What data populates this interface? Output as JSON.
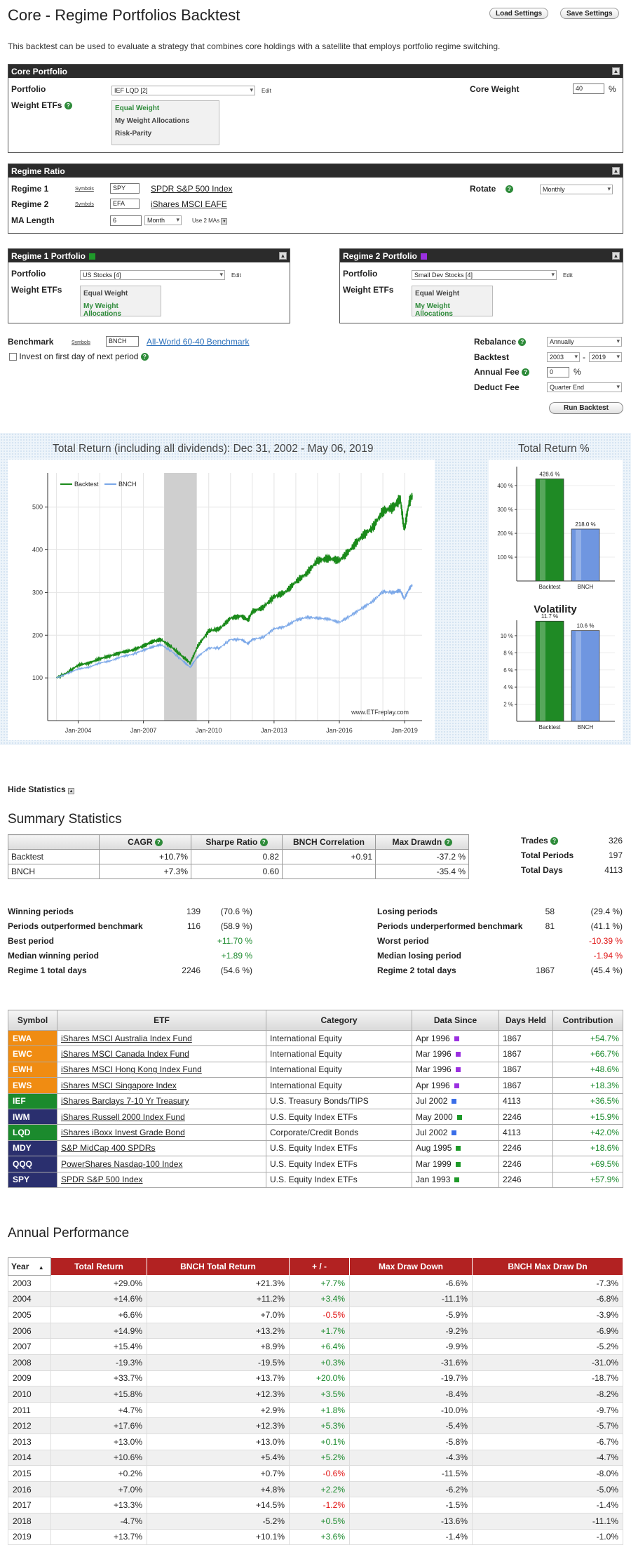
{
  "page": {
    "title": "Core - Regime Portfolios Backtest",
    "load_settings": "Load Settings",
    "save_settings": "Save Settings",
    "intro": "This backtest can be used to evaluate a strategy that combines core holdings with a satellite that employs portfolio regime switching."
  },
  "core": {
    "header": "Core Portfolio",
    "portfolio_label": "Portfolio",
    "portfolio_value": "IEF LQD [2]",
    "edit": "Edit",
    "weight_label": "Weight ETFs",
    "weight_options": [
      "Equal Weight",
      "My Weight Allocations",
      "Risk-Parity"
    ],
    "core_weight_label": "Core Weight",
    "core_weight_value": "40",
    "core_weight_unit": "%"
  },
  "regime": {
    "header": "Regime Ratio",
    "r1_label": "Regime 1",
    "r2_label": "Regime 2",
    "symbols_label": "Symbols",
    "r1_symbol": "SPY",
    "r1_name": "SPDR S&P 500 Index",
    "r2_symbol": "EFA",
    "r2_name": "iShares MSCI EAFE",
    "ma_label": "MA Length",
    "ma_value": "6",
    "ma_unit": "Month",
    "use2": "Use 2 MAs",
    "rotate_label": "Rotate",
    "rotate_value": "Monthly"
  },
  "r1p": {
    "header": "Regime 1 Portfolio",
    "color": "#1f9a2a",
    "portfolio_label": "Portfolio",
    "portfolio_value": "US Stocks [4]",
    "edit": "Edit",
    "weight_label": "Weight ETFs",
    "weight_options": [
      "Equal Weight",
      "My Weight Allocations"
    ]
  },
  "r2p": {
    "header": "Regime 2 Portfolio",
    "color": "#9b30e0",
    "portfolio_label": "Portfolio",
    "portfolio_value": "Small Dev Stocks [4]",
    "edit": "Edit",
    "weight_label": "Weight ETFs",
    "weight_options": [
      "Equal Weight",
      "My Weight Allocations"
    ]
  },
  "bench": {
    "label": "Benchmark",
    "symbols_label": "Symbols",
    "symbol": "BNCH",
    "name": "All-World 60-40 Benchmark",
    "invest_first": "Invest on first day of next period"
  },
  "settings": {
    "rebalance_label": "Rebalance",
    "rebalance_value": "Annually",
    "backtest_label": "Backtest",
    "from_year": "2003",
    "dash": "-",
    "to_year": "2019",
    "fee_label": "Annual Fee",
    "fee_value": "0",
    "fee_unit": "%",
    "deduct_label": "Deduct Fee",
    "deduct_value": "Quarter End",
    "run": "Run Backtest"
  },
  "main_chart": {
    "title": "Total Return (including all dividends): Dec 31, 2002 - May 06, 2019",
    "watermark": "www.ETFreplay.com",
    "legend": [
      "Backtest",
      "BNCH"
    ],
    "colors": {
      "backtest": "#1a8a1a",
      "bnch": "#7aa7e8",
      "shade": "#cfcfcf"
    }
  },
  "chart_data": [
    {
      "type": "line",
      "title": "Total Return (including all dividends): Dec 31, 2002 - May 06, 2019",
      "ylim": [
        0,
        580
      ],
      "xlim": [
        2002.6,
        2019.8
      ],
      "yticks": [
        100,
        200,
        300,
        400,
        500
      ],
      "xticks": [
        "Jan-2004",
        "Jan-2007",
        "Jan-2010",
        "Jan-2013",
        "Jan-2016",
        "Jan-2019"
      ],
      "shaded_region": [
        2007.95,
        2009.45
      ],
      "grid": true,
      "legend": "top-left",
      "series": [
        {
          "name": "Backtest",
          "x": [
            2003.0,
            2003.5,
            2004.0,
            2004.5,
            2005.0,
            2005.5,
            2006.0,
            2006.5,
            2007.0,
            2007.4,
            2007.8,
            2008.3,
            2008.8,
            2009.15,
            2009.5,
            2010.0,
            2010.5,
            2011.0,
            2011.5,
            2011.8,
            2012.0,
            2012.5,
            2013.0,
            2013.5,
            2014.0,
            2014.5,
            2015.0,
            2015.5,
            2016.0,
            2016.5,
            2017.0,
            2017.5,
            2018.0,
            2018.5,
            2018.8,
            2018.98,
            2019.2,
            2019.35
          ],
          "values": [
            100,
            112,
            130,
            135,
            145,
            152,
            160,
            165,
            175,
            185,
            190,
            172,
            150,
            135,
            175,
            210,
            215,
            240,
            245,
            235,
            255,
            265,
            290,
            300,
            325,
            345,
            375,
            380,
            375,
            400,
            430,
            450,
            490,
            500,
            520,
            445,
            510,
            528
          ]
        },
        {
          "name": "BNCH",
          "x": [
            2003.0,
            2003.5,
            2004.0,
            2004.5,
            2005.0,
            2005.5,
            2006.0,
            2006.5,
            2007.0,
            2007.4,
            2007.8,
            2008.3,
            2008.8,
            2009.15,
            2009.5,
            2010.0,
            2010.5,
            2011.0,
            2011.5,
            2011.8,
            2012.0,
            2012.5,
            2013.0,
            2013.5,
            2014.0,
            2014.5,
            2015.0,
            2015.5,
            2016.0,
            2016.5,
            2017.0,
            2017.5,
            2018.0,
            2018.5,
            2018.8,
            2018.98,
            2019.2,
            2019.35
          ],
          "values": [
            100,
            110,
            121,
            125,
            135,
            140,
            150,
            155,
            165,
            172,
            178,
            162,
            140,
            125,
            150,
            170,
            170,
            190,
            190,
            180,
            190,
            195,
            215,
            220,
            235,
            242,
            240,
            238,
            230,
            245,
            262,
            278,
            302,
            300,
            305,
            285,
            308,
            318
          ]
        }
      ]
    },
    {
      "type": "bar",
      "title": "Total Return %",
      "categories": [
        "Backtest",
        "BNCH"
      ],
      "values": [
        428.6,
        218.0
      ],
      "data_labels": [
        "428.6 %",
        "218.0 %"
      ],
      "ylim": [
        0,
        480
      ],
      "yticks": [
        "100 %",
        "200 %",
        "300 %",
        "400 %"
      ]
    },
    {
      "type": "bar",
      "title": "Volatility",
      "categories": [
        "Backtest",
        "BNCH"
      ],
      "values": [
        11.7,
        10.6
      ],
      "data_labels": [
        "11.7 %",
        "10.6 %"
      ],
      "ylim": [
        0,
        11.8
      ],
      "yticks": [
        "2 %",
        "4 %",
        "6 %",
        "8 %",
        "10 %"
      ]
    }
  ],
  "bars": {
    "colors": {
      "backtest": "#1f8a25",
      "bnch": "#6f96e0"
    }
  },
  "stats": {
    "hide": "Hide Statistics",
    "summary_title": "Summary Statistics",
    "columns": [
      "",
      "CAGR",
      "Sharpe Ratio",
      "BNCH Correlation",
      "Max Drawdn"
    ],
    "rows": [
      [
        "Backtest",
        "+10.7%",
        "0.82",
        "+0.91",
        "-37.2 %"
      ],
      [
        "BNCH",
        "+7.3%",
        "0.60",
        "",
        "-35.4 %"
      ]
    ],
    "trades_label": "Trades",
    "trades_value": "326",
    "periods_label": "Total Periods",
    "periods_value": "197",
    "days_label": "Total Days",
    "days_value": "4113",
    "left": [
      {
        "label": "Winning periods",
        "v1": "139",
        "v2": "(70.6 %)"
      },
      {
        "label": "Periods outperformed benchmark",
        "v1": "116",
        "v2": "(58.9 %)"
      },
      {
        "label": "Best period",
        "v1": "",
        "v2": "+11.70 %"
      },
      {
        "label": "Median winning period",
        "v1": "",
        "v2": "+1.89 %"
      },
      {
        "label": "Regime 1 total days",
        "v1": "2246",
        "v2": "(54.6 %)"
      }
    ],
    "right": [
      {
        "label": "Losing periods",
        "v1": "58",
        "v2": "(29.4 %)"
      },
      {
        "label": "Periods underperformed benchmark",
        "v1": "81",
        "v2": "(41.1 %)"
      },
      {
        "label": "Worst period",
        "v1": "",
        "v2": "-10.39 %"
      },
      {
        "label": "Median losing period",
        "v1": "",
        "v2": "-1.94 %"
      },
      {
        "label": "Regime 2 total days",
        "v1": "1867",
        "v2": "(45.4 %)"
      }
    ]
  },
  "etf": {
    "columns": [
      "Symbol",
      "ETF",
      "Category",
      "Data Since",
      "Days Held",
      "Contribution"
    ],
    "rows": [
      [
        "EWA",
        "iShares MSCI Australia Index Fund",
        "International Equity",
        "Apr 1996",
        "1867",
        "+54.7%"
      ],
      [
        "EWC",
        "iShares MSCI Canada Index Fund",
        "International Equity",
        "Mar 1996",
        "1867",
        "+66.7%"
      ],
      [
        "EWH",
        "iShares MSCI Hong Kong Index Fund",
        "International Equity",
        "Mar 1996",
        "1867",
        "+48.6%"
      ],
      [
        "EWS",
        "iShares MSCI Singapore Index",
        "International Equity",
        "Apr 1996",
        "1867",
        "+18.3%"
      ],
      [
        "IEF",
        "iShares Barclays 7-10 Yr Treasury",
        "U.S. Treasury Bonds/TIPS",
        "Jul 2002",
        "4113",
        "+36.5%"
      ],
      [
        "IWM",
        "iShares Russell 2000 Index Fund",
        "U.S. Equity Index ETFs",
        "May 2000",
        "2246",
        "+15.9%"
      ],
      [
        "LQD",
        "iShares iBoxx Invest Grade Bond",
        "Corporate/Credit Bonds",
        "Jul 2002",
        "4113",
        "+42.0%"
      ],
      [
        "MDY",
        "S&P MidCap 400 SPDRs",
        "U.S. Equity Index ETFs",
        "Aug 1995",
        "2246",
        "+18.6%"
      ],
      [
        "QQQ",
        "PowerShares Nasdaq-100 Index",
        "U.S. Equity Index ETFs",
        "Mar 1999",
        "2246",
        "+69.5%"
      ],
      [
        "SPY",
        "SPDR S&P 500 Index",
        "U.S. Equity Index ETFs",
        "Jan 1993",
        "2246",
        "+57.9%"
      ]
    ],
    "sym_colors": [
      "#f08c12",
      "#f08c12",
      "#f08c12",
      "#f08c12",
      "#1b8a2d",
      "#2a2f6e",
      "#1b8a2d",
      "#2a2f6e",
      "#2a2f6e",
      "#2a2f6e"
    ],
    "dot_colors": [
      "#9b30e0",
      "#9b30e0",
      "#9b30e0",
      "#9b30e0",
      "#3a6ee8",
      "#1f9a2a",
      "#3a6ee8",
      "#1f9a2a",
      "#1f9a2a",
      "#1f9a2a"
    ]
  },
  "annual": {
    "title": "Annual Performance",
    "columns": [
      "Year",
      "Total Return",
      "BNCH Total Return",
      "+ / -",
      "Max Draw Down",
      "BNCH Max Draw Dn"
    ],
    "rows": [
      [
        "2003",
        "+29.0%",
        "+21.3%",
        "+7.7%",
        "-6.6%",
        "-7.3%"
      ],
      [
        "2004",
        "+14.6%",
        "+11.2%",
        "+3.4%",
        "-11.1%",
        "-6.8%"
      ],
      [
        "2005",
        "+6.6%",
        "+7.0%",
        "-0.5%",
        "-5.9%",
        "-3.9%"
      ],
      [
        "2006",
        "+14.9%",
        "+13.2%",
        "+1.7%",
        "-9.2%",
        "-6.9%"
      ],
      [
        "2007",
        "+15.4%",
        "+8.9%",
        "+6.4%",
        "-9.9%",
        "-5.2%"
      ],
      [
        "2008",
        "-19.3%",
        "-19.5%",
        "+0.3%",
        "-31.6%",
        "-31.0%"
      ],
      [
        "2009",
        "+33.7%",
        "+13.7%",
        "+20.0%",
        "-19.7%",
        "-18.7%"
      ],
      [
        "2010",
        "+15.8%",
        "+12.3%",
        "+3.5%",
        "-8.4%",
        "-8.2%"
      ],
      [
        "2011",
        "+4.7%",
        "+2.9%",
        "+1.8%",
        "-10.0%",
        "-9.7%"
      ],
      [
        "2012",
        "+17.6%",
        "+12.3%",
        "+5.3%",
        "-5.4%",
        "-5.7%"
      ],
      [
        "2013",
        "+13.0%",
        "+13.0%",
        "+0.1%",
        "-5.8%",
        "-6.7%"
      ],
      [
        "2014",
        "+10.6%",
        "+5.4%",
        "+5.2%",
        "-4.3%",
        "-4.7%"
      ],
      [
        "2015",
        "+0.2%",
        "+0.7%",
        "-0.6%",
        "-11.5%",
        "-8.0%"
      ],
      [
        "2016",
        "+7.0%",
        "+4.8%",
        "+2.2%",
        "-6.2%",
        "-5.0%"
      ],
      [
        "2017",
        "+13.3%",
        "+14.5%",
        "-1.2%",
        "-1.5%",
        "-1.4%"
      ],
      [
        "2018",
        "-4.7%",
        "-5.2%",
        "+0.5%",
        "-13.6%",
        "-11.1%"
      ],
      [
        "2019",
        "+13.7%",
        "+10.1%",
        "+3.6%",
        "-1.4%",
        "-1.0%"
      ]
    ]
  }
}
